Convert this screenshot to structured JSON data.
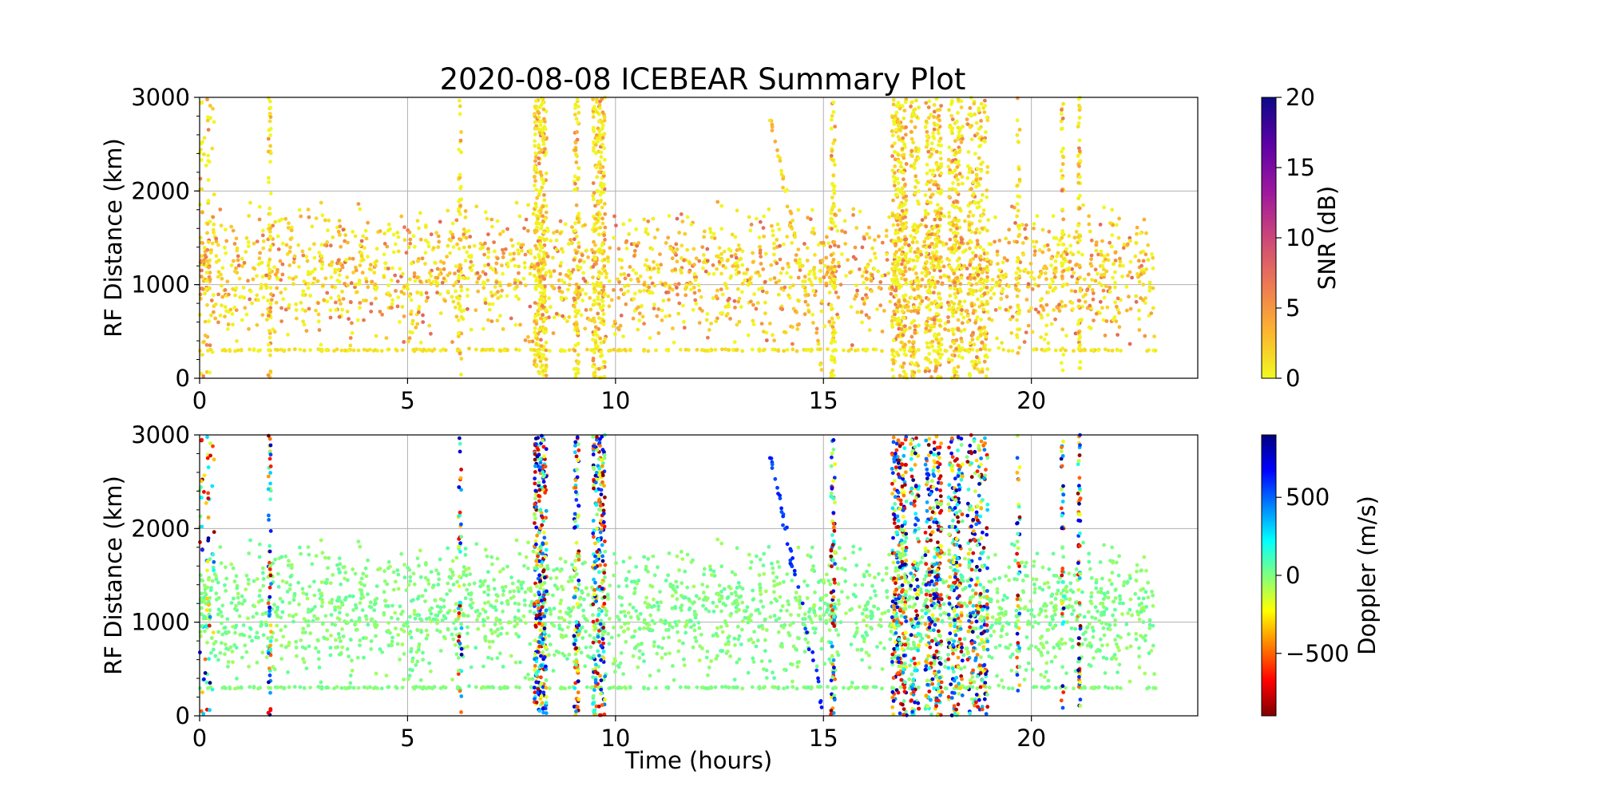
{
  "chart_data": {
    "title": "2020-08-08 ICEBEAR Summary Plot",
    "type": "scatter",
    "xlabel": "Time (hours)",
    "xlim": [
      0,
      24
    ],
    "x_ticks": [
      "0",
      "5",
      "10",
      "15",
      "20"
    ],
    "grid": true,
    "panels": [
      {
        "ylabel": "RF Distance (km)",
        "ylim": [
          0,
          3000
        ],
        "y_ticks": [
          "0",
          "1000",
          "2000",
          "3000"
        ],
        "colorbar": {
          "label": "SNR (dB)",
          "range": [
            0,
            20
          ],
          "ticks": [
            "0",
            "5",
            "10",
            "15",
            "20"
          ],
          "colormap": "plasma_r",
          "colors": [
            "#f0f921",
            "#fdb42f",
            "#ed7953",
            "#cc4778",
            "#9c179e",
            "#5c01a6",
            "#0d0887"
          ]
        },
        "encoding": "snr"
      },
      {
        "ylabel": "RF Distance (km)",
        "ylim": [
          0,
          3000
        ],
        "y_ticks": [
          "0",
          "1000",
          "2000",
          "3000"
        ],
        "colorbar": {
          "label": "Doppler (m/s)",
          "range": [
            -900,
            900
          ],
          "ticks": [
            "−500",
            "0",
            "500"
          ],
          "tick_values": [
            -500,
            0,
            500
          ],
          "colormap": "jet_r",
          "colors": [
            "#800000",
            "#ff0000",
            "#ff8000",
            "#ffff00",
            "#80ff80",
            "#00ffff",
            "#0080ff",
            "#0000ff",
            "#000080"
          ]
        },
        "encoding": "doppler"
      }
    ],
    "bursts": [
      {
        "t0": 0.0,
        "t1": 0.35,
        "n": 70
      },
      {
        "t0": 1.65,
        "t1": 1.72,
        "n": 60
      },
      {
        "t0": 6.22,
        "t1": 6.3,
        "n": 45
      },
      {
        "t0": 8.05,
        "t1": 8.35,
        "n": 280
      },
      {
        "t0": 9.0,
        "t1": 9.12,
        "n": 90
      },
      {
        "t0": 9.45,
        "t1": 9.75,
        "n": 220
      },
      {
        "t0": 15.18,
        "t1": 15.28,
        "n": 80
      },
      {
        "t0": 16.65,
        "t1": 17.0,
        "n": 260
      },
      {
        "t0": 17.1,
        "t1": 17.3,
        "n": 120
      },
      {
        "t0": 17.45,
        "t1": 17.85,
        "n": 260
      },
      {
        "t0": 18.0,
        "t1": 18.35,
        "n": 200
      },
      {
        "t0": 18.45,
        "t1": 18.95,
        "n": 220
      },
      {
        "t0": 19.65,
        "t1": 19.72,
        "n": 40
      },
      {
        "t0": 20.72,
        "t1": 20.78,
        "n": 40
      },
      {
        "t0": 21.12,
        "t1": 21.18,
        "n": 60
      }
    ],
    "diffuse_region": {
      "t0": 0,
      "t1": 23,
      "r0": 300,
      "r1": 1900,
      "n": 2200
    },
    "ground_line": {
      "range_km": 300,
      "t0": 0,
      "t1": 23,
      "n": 260
    },
    "meteor_trail": {
      "t0": 13.7,
      "t1": 15.0,
      "r0": 2800,
      "r1": 50,
      "n": 40
    }
  }
}
